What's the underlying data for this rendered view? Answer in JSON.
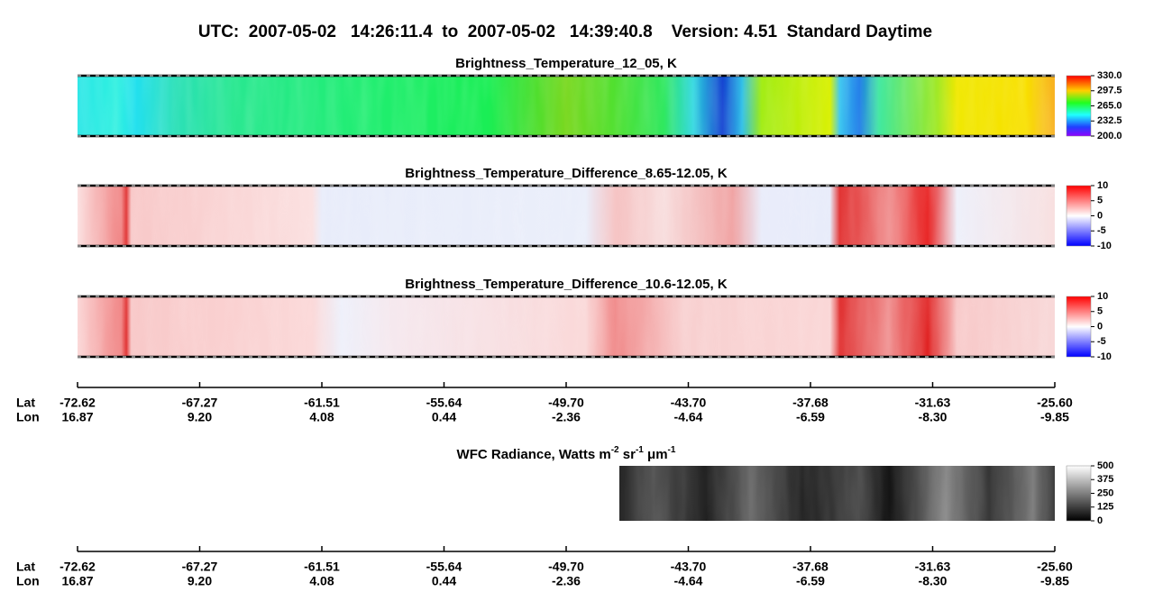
{
  "header": {
    "title": "UTC:  2007-05-02   14:26:11.4  to  2007-05-02   14:39:40.8    Version: 4.51  Standard Daytime"
  },
  "panels": [
    {
      "title": "Brightness_Temperature_12_05, K",
      "colorbar_ticks": [
        "330.0",
        "297.5",
        "265.0",
        "232.5",
        "200.0"
      ]
    },
    {
      "title": "Brightness_Temperature_Difference_8.65-12.05, K",
      "colorbar_ticks": [
        "10",
        "5",
        "0",
        "-5",
        "-10"
      ]
    },
    {
      "title": "Brightness_Temperature_Difference_10.6-12.05, K",
      "colorbar_ticks": [
        "10",
        "5",
        "0",
        "-5",
        "-10"
      ]
    }
  ],
  "wfc": {
    "title_parts": [
      {
        "text": "WFC Radiance, Watts m"
      },
      {
        "sup": "-2"
      },
      {
        "text": " sr"
      },
      {
        "sup": "-1"
      },
      {
        "text": " μm"
      },
      {
        "sup": "-1"
      }
    ],
    "colorbar_ticks": [
      "500",
      "375",
      "250",
      "125",
      "0"
    ]
  },
  "axes": [
    {
      "lat_label": "Lat",
      "lon_label": "Lon",
      "lat": [
        "-72.62",
        "-67.27",
        "-61.51",
        "-55.64",
        "-49.70",
        "-43.70",
        "-37.68",
        "-31.63",
        "-25.60"
      ],
      "lon": [
        "16.87",
        "9.20",
        "4.08",
        "0.44",
        "-2.36",
        "-4.64",
        "-6.59",
        "-8.30",
        "-9.85"
      ]
    },
    {
      "lat_label": "Lat",
      "lon_label": "Lon",
      "lat": [
        "-72.62",
        "-67.27",
        "-61.51",
        "-55.64",
        "-49.70",
        "-43.70",
        "-37.68",
        "-31.63",
        "-25.60"
      ],
      "lon": [
        "16.87",
        "9.20",
        "4.08",
        "0.44",
        "-2.36",
        "-4.64",
        "-6.59",
        "-8.30",
        "-9.85"
      ]
    }
  ]
}
